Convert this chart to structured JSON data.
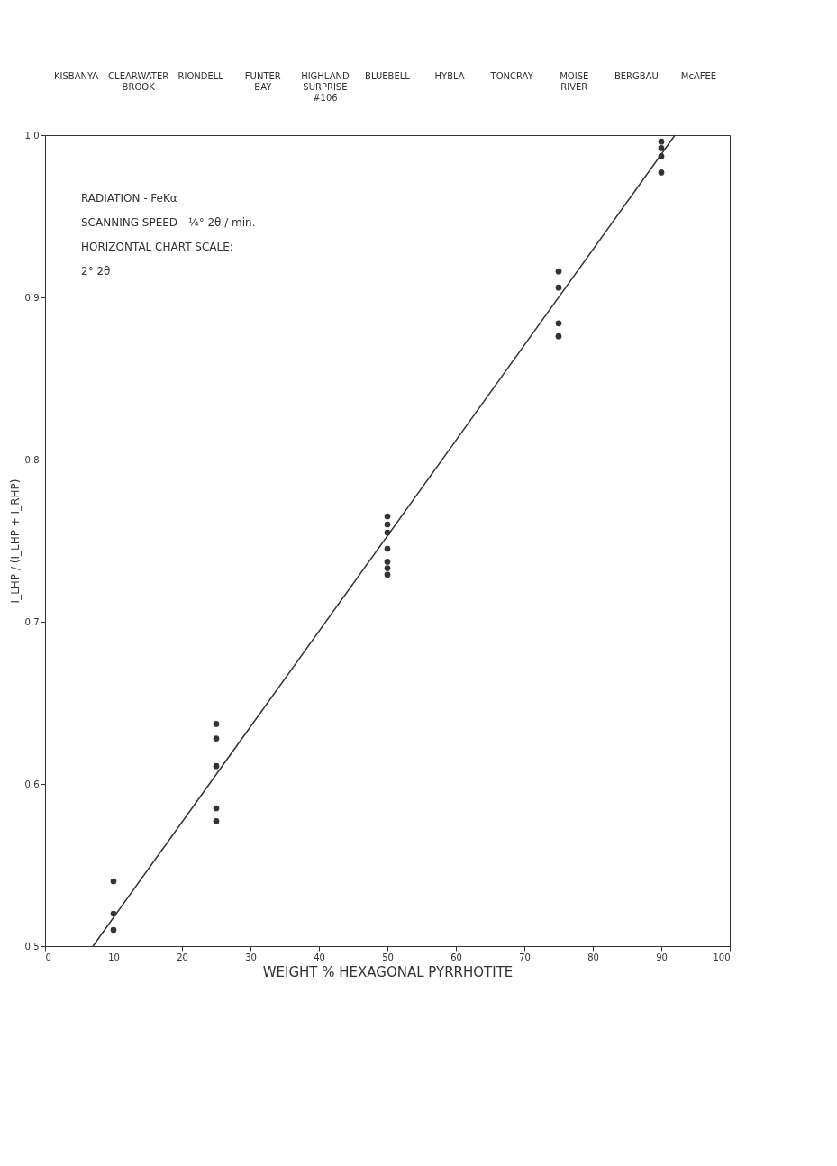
{
  "chart_data": {
    "type": "scatter",
    "xlabel": "WEIGHT % HEXAGONAL PYRRHOTITE",
    "ylabel": "I_LHP / (I_LHP + I_RHP)",
    "xlim": [
      0,
      100
    ],
    "xticks": [
      0,
      10,
      20,
      30,
      40,
      50,
      60,
      70,
      80,
      90,
      100
    ],
    "ylim": [
      0.5,
      1.0
    ],
    "yticks": [
      0.5,
      0.6,
      0.7,
      0.8,
      0.9,
      {
        "value": 1.0,
        "label": "1.0"
      }
    ],
    "grid": false,
    "series": [
      {
        "marker": "circle",
        "color": "#333333",
        "x": [
          10,
          10,
          10,
          25,
          25,
          25,
          25,
          25,
          50,
          50,
          50,
          50,
          50,
          50,
          50,
          75,
          75,
          75,
          75,
          90,
          90,
          90,
          90
        ],
        "values": [
          0.54,
          0.52,
          0.51,
          0.637,
          0.628,
          0.611,
          0.585,
          0.577,
          0.765,
          0.76,
          0.755,
          0.745,
          0.737,
          0.733,
          0.729,
          0.916,
          0.906,
          0.884,
          0.876,
          0.996,
          0.992,
          0.987,
          0.977
        ]
      },
      {
        "type": "line",
        "color": "#333333",
        "x": [
          7,
          92
        ],
        "values": [
          0.5,
          1.0
        ]
      }
    ],
    "annotations": [
      "KISBANYA",
      "CLEARWATER BROOK",
      "RIONDELL",
      "FUNTER BAY",
      "HIGHLAND SURPRISE #106",
      "BLUEBELL",
      "HYBLA",
      "TONCRAY",
      "MOISE RIVER",
      "BERGBAU",
      "McAFEE",
      "RADIATION - FeKα",
      "SCANNING SPEED - ¼° 2θ / min.",
      "HORIZONTAL CHART SCALE:",
      "2° 2θ"
    ]
  }
}
